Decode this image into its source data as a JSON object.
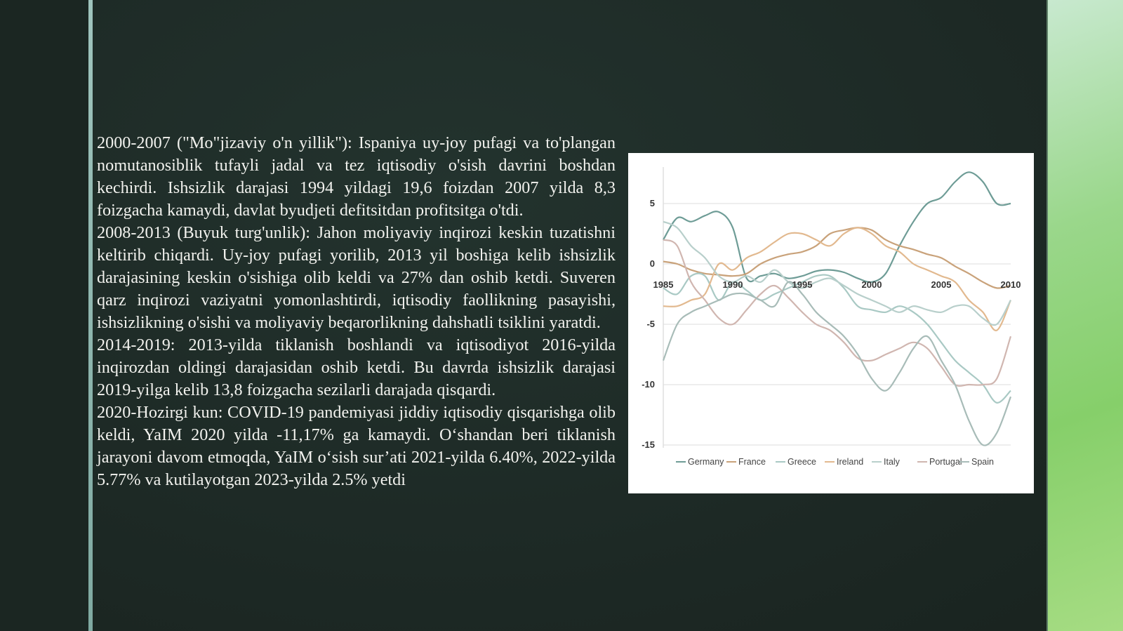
{
  "text": {
    "paragraphs": [
      "2000-2007 (\"Mo\"jizaviy o'n yillik\"): Ispaniya uy-joy pufagi va to'plangan nomutanosiblik tufayli jadal va tez iqtisodiy o'sish davrini boshdan kechirdi. Ishsizlik darajasi 1994 yildagi 19,6 foizdan 2007 yilda 8,3 foizgacha kamaydi, davlat byudjeti defitsitdan profitsitga o'tdi.",
      "2008-2013 (Buyuk turg'unlik): Jahon moliyaviy inqirozi keskin tuzatishni keltirib chiqardi. Uy-joy pufagi yorilib, 2013 yil boshiga kelib ishsizlik darajasining keskin o'sishiga olib keldi va 27% dan oshib ketdi. Suveren qarz inqirozi vaziyatni yomonlashtirdi, iqtisodiy faollikning pasayishi, ishsizlikning o'sishi va moliyaviy beqarorlikning dahshatli tsiklini yaratdi.",
      "2014-2019: 2013-yilda tiklanish boshlandi va iqtisodiyot 2016-yilda inqirozdan oldingi darajasidan oshib ketdi. Bu davrda ishsizlik darajasi 2019-yilga kelib 13,8 foizgacha sezilarli darajada qisqardi.",
      "2020-Hozirgi kun: COVID-19 pandemiyasi jiddiy iqtisodiy qisqarishga olib keldi, YaIM 2020 yilda -11,17% ga kamaydi. O‘shandan beri tiklanish jarayoni davom etmoqda, YaIM o‘sish sur’ati 2021-yilda 6.40%, 2022-yilda 5.77% va kutilayotgan 2023-yilda 2.5% yetdi"
    ]
  },
  "chart_data": {
    "type": "line",
    "x_ticks": [
      "1985",
      "1990",
      "1995",
      "2000",
      "2005",
      "2010"
    ],
    "y_ticks": [
      "5",
      "0",
      "-5",
      "-10",
      "-15"
    ],
    "xlim": [
      1985,
      2010
    ],
    "ylim": [
      -16,
      8
    ],
    "grid": true,
    "legend_position": "bottom",
    "x": [
      1985,
      1986,
      1987,
      1988,
      1989,
      1990,
      1991,
      1992,
      1993,
      1994,
      1995,
      1996,
      1997,
      1998,
      1999,
      2000,
      2001,
      2002,
      2003,
      2004,
      2005,
      2006,
      2007,
      2008,
      2009,
      2010
    ],
    "series": [
      {
        "name": "Germany",
        "color": "#6e9c96",
        "values": [
          2.0,
          3.8,
          3.5,
          4.0,
          4.3,
          3.0,
          -1.2,
          -1.0,
          -0.8,
          -1.2,
          -1.0,
          -0.6,
          -0.5,
          -0.7,
          -1.2,
          -1.5,
          -0.8,
          1.5,
          3.5,
          5.0,
          5.5,
          6.8,
          7.6,
          6.8,
          5.0,
          5.0
        ]
      },
      {
        "name": "France",
        "color": "#c9a27a",
        "values": [
          0.2,
          0.0,
          -0.5,
          -0.8,
          -0.9,
          -1.0,
          -0.8,
          0.0,
          0.5,
          0.8,
          1.0,
          1.5,
          2.5,
          2.8,
          3.0,
          2.8,
          2.0,
          1.5,
          1.2,
          0.8,
          0.5,
          -0.2,
          -0.8,
          -1.5,
          -2.0,
          -1.8
        ]
      },
      {
        "name": "Greece",
        "color": "#a9c9c4",
        "values": [
          -2.0,
          -2.5,
          -1.0,
          -1.0,
          -3.0,
          -1.5,
          -2.2,
          -3.0,
          -2.5,
          -2.0,
          -1.5,
          -1.0,
          -1.0,
          -2.0,
          -3.5,
          -3.8,
          -4.0,
          -3.5,
          -4.0,
          -5.0,
          -6.5,
          -8.0,
          -9.0,
          -10.0,
          -11.5,
          -10.5
        ]
      },
      {
        "name": "Ireland",
        "color": "#e2b98f",
        "values": [
          -3.5,
          -3.5,
          -3.0,
          -2.5,
          0.0,
          -0.5,
          0.5,
          1.0,
          1.8,
          2.5,
          2.5,
          2.0,
          1.5,
          2.5,
          3.0,
          2.5,
          1.5,
          1.0,
          0.0,
          -0.5,
          -1.0,
          -1.5,
          -3.0,
          -4.0,
          -5.5,
          -3.0
        ]
      },
      {
        "name": "Italy",
        "color": "#b8cfcb",
        "values": [
          3.5,
          3.0,
          1.5,
          0.5,
          -1.0,
          -1.5,
          -1.0,
          -1.5,
          -0.5,
          -1.5,
          -2.0,
          -1.5,
          -1.2,
          -1.8,
          -2.5,
          -3.0,
          -3.5,
          -4.0,
          -3.5,
          -3.8,
          -4.0,
          -3.5,
          -3.5,
          -4.5,
          -5.0,
          -3.0
        ]
      },
      {
        "name": "Portugal",
        "color": "#d0b6b0",
        "values": [
          2.0,
          1.5,
          -1.5,
          -3.0,
          -4.5,
          -5.0,
          -3.8,
          -2.5,
          -1.8,
          -2.8,
          -4.0,
          -5.0,
          -5.5,
          -6.5,
          -7.8,
          -8.0,
          -7.5,
          -7.0,
          -6.5,
          -7.0,
          -8.5,
          -10.0,
          -10.0,
          -10.0,
          -9.5,
          -6.0
        ]
      },
      {
        "name": "Spain",
        "color": "#a8bcb8",
        "values": [
          -8.0,
          -5.0,
          -4.0,
          -3.5,
          -3.0,
          -2.5,
          -2.5,
          -3.0,
          -3.5,
          -1.5,
          -2.5,
          -4.0,
          -5.0,
          -6.0,
          -7.5,
          -9.5,
          -10.5,
          -9.0,
          -7.0,
          -6.0,
          -8.0,
          -10.0,
          -13.0,
          -15.0,
          -14.0,
          -11.0
        ]
      }
    ]
  }
}
